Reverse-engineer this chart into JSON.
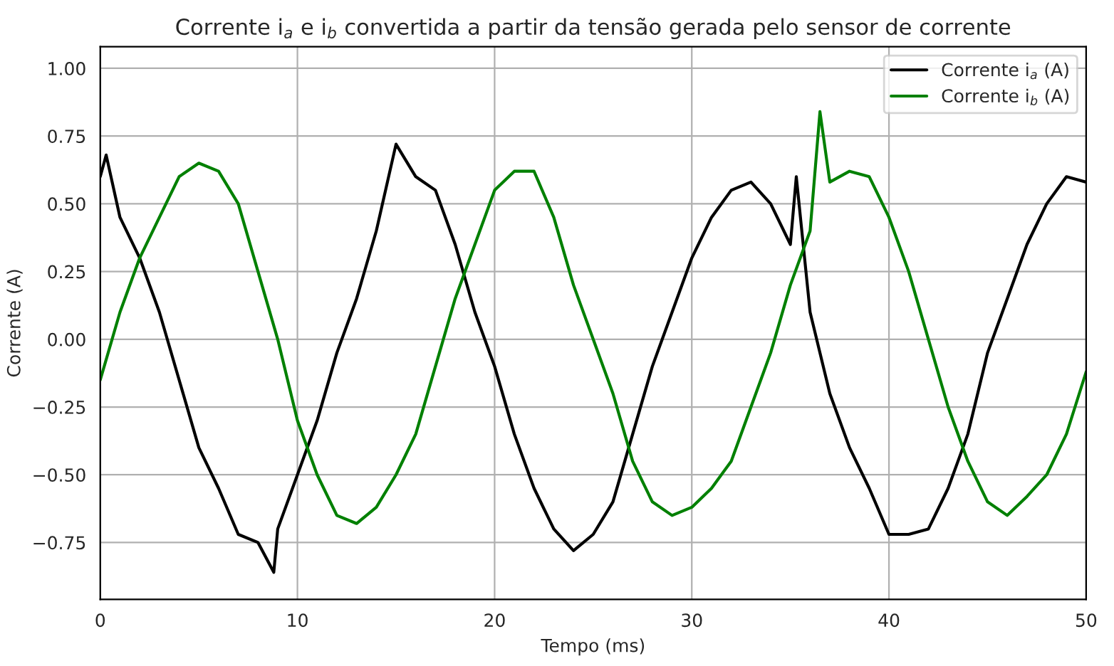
{
  "chart_data": {
    "type": "line",
    "title": "Corrente i$_{a}$ e i$_{b}$ convertida a partir da tensão gerada pelo sensor de corrente",
    "xlabel": "Tempo (ms)",
    "ylabel": "Corrente (A)",
    "xlim": [
      0,
      50
    ],
    "ylim": [
      -0.96,
      1.08
    ],
    "xticks": [
      0,
      10,
      20,
      30,
      40,
      50
    ],
    "yticks": [
      {
        "value": -0.75,
        "label": "−0.75"
      },
      {
        "value": -0.5,
        "label": "−0.50"
      },
      {
        "value": -0.25,
        "label": "−0.25"
      },
      {
        "value": 0,
        "label": "0.00"
      },
      {
        "value": 0.25,
        "label": "0.25"
      },
      {
        "value": 0.5,
        "label": "0.50"
      },
      {
        "value": 0.75,
        "label": "0.75"
      },
      {
        "value": 1.0,
        "label": "1.00"
      }
    ],
    "grid": true,
    "legend": "top right",
    "line_style": "solid",
    "marker": "none",
    "series": [
      {
        "name": "Corrente i$_{a}$ (A)",
        "color": "#000000",
        "x": [
          0,
          0.3,
          1,
          2,
          3,
          4,
          5,
          6,
          7,
          8,
          8.8,
          9,
          10,
          11,
          12,
          13,
          14,
          15,
          16,
          17,
          18,
          19,
          20,
          21,
          22,
          23,
          24,
          25,
          26,
          27,
          28,
          29,
          30,
          31,
          32,
          33,
          34,
          35,
          35.3,
          36,
          37,
          38,
          39,
          40,
          41,
          42,
          43,
          44,
          45,
          46,
          47,
          48,
          49,
          50
        ],
        "values": [
          0.6,
          0.68,
          0.45,
          0.3,
          0.1,
          -0.15,
          -0.4,
          -0.55,
          -0.72,
          -0.75,
          -0.86,
          -0.7,
          -0.5,
          -0.3,
          -0.05,
          0.15,
          0.4,
          0.72,
          0.6,
          0.55,
          0.35,
          0.1,
          -0.1,
          -0.35,
          -0.55,
          -0.7,
          -0.78,
          -0.72,
          -0.6,
          -0.35,
          -0.1,
          0.1,
          0.3,
          0.45,
          0.55,
          0.58,
          0.5,
          0.35,
          0.6,
          0.1,
          -0.2,
          -0.4,
          -0.55,
          -0.72,
          -0.72,
          -0.7,
          -0.55,
          -0.35,
          -0.05,
          0.15,
          0.35,
          0.5,
          0.6,
          0.58
        ]
      },
      {
        "name": "Corrente i$_{b}$ (A)",
        "color": "#008000",
        "x": [
          0,
          1,
          2,
          3,
          4,
          5,
          6,
          7,
          8,
          9,
          10,
          11,
          12,
          13,
          14,
          15,
          16,
          17,
          18,
          19,
          20,
          21,
          22,
          23,
          24,
          25,
          26,
          27,
          28,
          29,
          30,
          31,
          32,
          33,
          34,
          35,
          36,
          36.5,
          37,
          38,
          39,
          40,
          41,
          42,
          43,
          44,
          45,
          46,
          47,
          48,
          49,
          50
        ],
        "values": [
          -0.15,
          0.1,
          0.3,
          0.45,
          0.6,
          0.65,
          0.62,
          0.5,
          0.25,
          0.0,
          -0.3,
          -0.5,
          -0.65,
          -0.68,
          -0.62,
          -0.5,
          -0.35,
          -0.1,
          0.15,
          0.35,
          0.55,
          0.62,
          0.62,
          0.45,
          0.2,
          0.0,
          -0.2,
          -0.45,
          -0.6,
          -0.65,
          -0.62,
          -0.55,
          -0.45,
          -0.25,
          -0.05,
          0.2,
          0.4,
          0.84,
          0.58,
          0.62,
          0.6,
          0.45,
          0.25,
          0.0,
          -0.25,
          -0.45,
          -0.6,
          -0.65,
          -0.58,
          -0.5,
          -0.35,
          -0.12
        ]
      }
    ]
  }
}
